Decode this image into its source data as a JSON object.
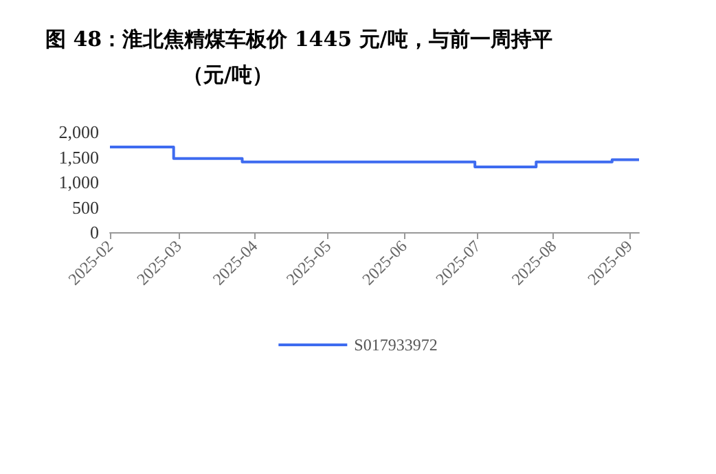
{
  "chart_data": {
    "type": "step",
    "title": "图 48：淮北焦精煤车板价 1445 元/吨，与前一周持平",
    "subtitle": "（元/吨）",
    "x": [
      "2025-02-01",
      "2025-02-27",
      "2025-03-27",
      "2025-06-30",
      "2025-07-25",
      "2025-08-25",
      "2025-09-05"
    ],
    "series": [
      {
        "name": "S017933972",
        "color": "#3e6bf0",
        "values": [
          1700,
          1470,
          1400,
          1300,
          1400,
          1445,
          1445
        ]
      }
    ],
    "xlim": [
      "2025-02-01",
      "2025-09-05"
    ],
    "xticks": [
      "2025-02",
      "2025-03",
      "2025-04",
      "2025-05",
      "2025-06",
      "2025-07",
      "2025-08",
      "2025-09"
    ],
    "ylim": [
      0,
      2000
    ],
    "yticks": [
      0,
      500,
      {
        "value": 1000,
        "label": "1,000"
      },
      {
        "value": 1500,
        "label": "1,500"
      },
      {
        "value": 2000,
        "label": "2,000"
      }
    ],
    "grid": false,
    "legend": "bottom",
    "marker": "none",
    "line_style": "solid"
  }
}
